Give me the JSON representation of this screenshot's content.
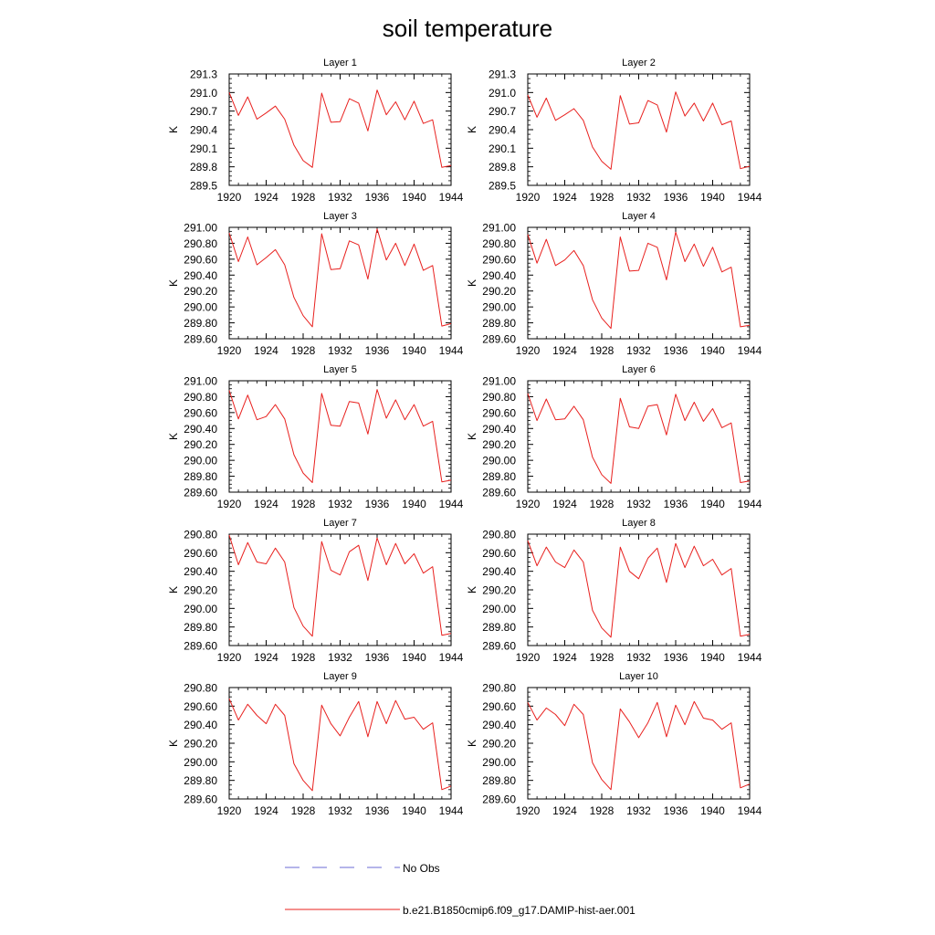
{
  "figure": {
    "title": "soil temperature",
    "legend": [
      {
        "label": "No Obs",
        "style": "dashed",
        "color": "#6b6bd6"
      },
      {
        "label": "b.e21.B1850cmip6.f09_g17.DAMIP-hist-aer.001",
        "style": "solid",
        "color": "#e8201e"
      }
    ]
  },
  "chart_data": [
    {
      "type": "line",
      "title": "Layer 1",
      "ylabel": "K",
      "xlim": [
        1920,
        1944
      ],
      "ylim": [
        289.5,
        291.3
      ],
      "xticks": [
        1920,
        1924,
        1928,
        1932,
        1936,
        1940,
        1944
      ],
      "yticks": [
        "289.5",
        "289.8",
        "290.1",
        "290.4",
        "290.7",
        "291.0",
        "291.3"
      ],
      "series": [
        {
          "color": "#e8201e",
          "x": [
            1920,
            1921,
            1922,
            1923,
            1924,
            1925,
            1926,
            1927,
            1928,
            1929,
            1930,
            1931,
            1932,
            1933,
            1934,
            1935,
            1936,
            1937,
            1938,
            1939,
            1940,
            1941,
            1942,
            1943,
            1944
          ],
          "values": [
            291.0,
            290.63,
            290.93,
            290.57,
            290.67,
            290.78,
            290.57,
            290.15,
            289.9,
            289.79,
            290.99,
            290.52,
            290.53,
            290.9,
            290.83,
            290.38,
            291.04,
            290.64,
            290.85,
            290.56,
            290.86,
            290.5,
            290.56,
            289.79,
            289.82
          ]
        }
      ]
    },
    {
      "type": "line",
      "title": "Layer 2",
      "ylabel": "K",
      "xlim": [
        1920,
        1944
      ],
      "ylim": [
        289.5,
        291.3
      ],
      "xticks": [
        1920,
        1924,
        1928,
        1932,
        1936,
        1940,
        1944
      ],
      "yticks": [
        "289.5",
        "289.8",
        "290.1",
        "290.4",
        "290.7",
        "291.0",
        "291.3"
      ],
      "series": [
        {
          "color": "#e8201e",
          "x": [
            1920,
            1921,
            1922,
            1923,
            1924,
            1925,
            1926,
            1927,
            1928,
            1929,
            1930,
            1931,
            1932,
            1933,
            1934,
            1935,
            1936,
            1937,
            1938,
            1939,
            1940,
            1941,
            1942,
            1943,
            1944
          ],
          "values": [
            290.96,
            290.6,
            290.91,
            290.55,
            290.64,
            290.74,
            290.55,
            290.12,
            289.89,
            289.76,
            290.95,
            290.49,
            290.51,
            290.87,
            290.8,
            290.36,
            291.01,
            290.62,
            290.83,
            290.54,
            290.83,
            290.48,
            290.54,
            289.77,
            289.81
          ]
        }
      ]
    },
    {
      "type": "line",
      "title": "Layer 3",
      "ylabel": "K",
      "xlim": [
        1920,
        1944
      ],
      "ylim": [
        289.6,
        291.0
      ],
      "xticks": [
        1920,
        1924,
        1928,
        1932,
        1936,
        1940,
        1944
      ],
      "yticks": [
        "289.60",
        "289.80",
        "290.00",
        "290.20",
        "290.40",
        "290.60",
        "290.80",
        "291.00"
      ],
      "series": [
        {
          "color": "#e8201e",
          "x": [
            1920,
            1921,
            1922,
            1923,
            1924,
            1925,
            1926,
            1927,
            1928,
            1929,
            1930,
            1931,
            1932,
            1933,
            1934,
            1935,
            1936,
            1937,
            1938,
            1939,
            1940,
            1941,
            1942,
            1943,
            1944
          ],
          "values": [
            290.93,
            290.57,
            290.88,
            290.53,
            290.62,
            290.72,
            290.53,
            290.12,
            289.89,
            289.75,
            290.92,
            290.47,
            290.48,
            290.83,
            290.78,
            290.35,
            290.98,
            290.59,
            290.8,
            290.52,
            290.79,
            290.46,
            290.52,
            289.76,
            289.79
          ]
        }
      ]
    },
    {
      "type": "line",
      "title": "Layer 4",
      "ylabel": "K",
      "xlim": [
        1920,
        1944
      ],
      "ylim": [
        289.6,
        291.0
      ],
      "xticks": [
        1920,
        1924,
        1928,
        1932,
        1936,
        1940,
        1944
      ],
      "yticks": [
        "289.60",
        "289.80",
        "290.00",
        "290.20",
        "290.40",
        "290.60",
        "290.80",
        "291.00"
      ],
      "series": [
        {
          "color": "#e8201e",
          "x": [
            1920,
            1921,
            1922,
            1923,
            1924,
            1925,
            1926,
            1927,
            1928,
            1929,
            1930,
            1931,
            1932,
            1933,
            1934,
            1935,
            1936,
            1937,
            1938,
            1939,
            1940,
            1941,
            1942,
            1943,
            1944
          ],
          "values": [
            290.91,
            290.55,
            290.85,
            290.52,
            290.59,
            290.71,
            290.52,
            290.09,
            289.86,
            289.73,
            290.88,
            290.45,
            290.46,
            290.8,
            290.75,
            290.34,
            290.94,
            290.57,
            290.79,
            290.51,
            290.75,
            290.44,
            290.5,
            289.75,
            289.77
          ]
        }
      ]
    },
    {
      "type": "line",
      "title": "Layer 5",
      "ylabel": "K",
      "xlim": [
        1920,
        1944
      ],
      "ylim": [
        289.6,
        291.0
      ],
      "xticks": [
        1920,
        1924,
        1928,
        1932,
        1936,
        1940,
        1944
      ],
      "yticks": [
        "289.60",
        "289.80",
        "290.00",
        "290.20",
        "290.40",
        "290.60",
        "290.80",
        "291.00"
      ],
      "series": [
        {
          "color": "#e8201e",
          "x": [
            1920,
            1921,
            1922,
            1923,
            1924,
            1925,
            1926,
            1927,
            1928,
            1929,
            1930,
            1931,
            1932,
            1933,
            1934,
            1935,
            1936,
            1937,
            1938,
            1939,
            1940,
            1941,
            1942,
            1943,
            1944
          ],
          "values": [
            290.88,
            290.52,
            290.82,
            290.51,
            290.55,
            290.7,
            290.52,
            290.07,
            289.84,
            289.72,
            290.84,
            290.44,
            290.43,
            290.74,
            290.72,
            290.33,
            290.89,
            290.53,
            290.76,
            290.51,
            290.7,
            290.43,
            290.49,
            289.73,
            289.75
          ]
        }
      ]
    },
    {
      "type": "line",
      "title": "Layer 6",
      "ylabel": "K",
      "xlim": [
        1920,
        1944
      ],
      "ylim": [
        289.6,
        291.0
      ],
      "xticks": [
        1920,
        1924,
        1928,
        1932,
        1936,
        1940,
        1944
      ],
      "yticks": [
        "289.60",
        "289.80",
        "290.00",
        "290.20",
        "290.40",
        "290.60",
        "290.80",
        "291.00"
      ],
      "series": [
        {
          "color": "#e8201e",
          "x": [
            1920,
            1921,
            1922,
            1923,
            1924,
            1925,
            1926,
            1927,
            1928,
            1929,
            1930,
            1931,
            1932,
            1933,
            1934,
            1935,
            1936,
            1937,
            1938,
            1939,
            1940,
            1941,
            1942,
            1943,
            1944
          ],
          "values": [
            290.84,
            290.5,
            290.77,
            290.51,
            290.52,
            290.68,
            290.51,
            290.04,
            289.82,
            289.71,
            290.78,
            290.42,
            290.4,
            290.68,
            290.7,
            290.32,
            290.83,
            290.5,
            290.73,
            290.49,
            290.65,
            290.41,
            290.47,
            289.72,
            289.74
          ]
        }
      ]
    },
    {
      "type": "line",
      "title": "Layer 7",
      "ylabel": "K",
      "xlim": [
        1920,
        1944
      ],
      "ylim": [
        289.6,
        290.8
      ],
      "xticks": [
        1920,
        1924,
        1928,
        1932,
        1936,
        1940,
        1944
      ],
      "yticks": [
        "289.60",
        "289.80",
        "290.00",
        "290.20",
        "290.40",
        "290.60",
        "290.80"
      ],
      "series": [
        {
          "color": "#e8201e",
          "x": [
            1920,
            1921,
            1922,
            1923,
            1924,
            1925,
            1926,
            1927,
            1928,
            1929,
            1930,
            1931,
            1932,
            1933,
            1934,
            1935,
            1936,
            1937,
            1938,
            1939,
            1940,
            1941,
            1942,
            1943,
            1944
          ],
          "values": [
            290.79,
            290.47,
            290.71,
            290.5,
            290.48,
            290.65,
            290.5,
            290.01,
            289.81,
            289.7,
            290.72,
            290.41,
            290.36,
            290.61,
            290.68,
            290.3,
            290.76,
            290.47,
            290.7,
            290.48,
            290.59,
            290.38,
            290.45,
            289.71,
            289.73
          ]
        }
      ]
    },
    {
      "type": "line",
      "title": "Layer 8",
      "ylabel": "K",
      "xlim": [
        1920,
        1944
      ],
      "ylim": [
        289.6,
        290.8
      ],
      "xticks": [
        1920,
        1924,
        1928,
        1932,
        1936,
        1940,
        1944
      ],
      "yticks": [
        "289.60",
        "289.80",
        "290.00",
        "290.20",
        "290.40",
        "290.60",
        "290.80"
      ],
      "series": [
        {
          "color": "#e8201e",
          "x": [
            1920,
            1921,
            1922,
            1923,
            1924,
            1925,
            1926,
            1927,
            1928,
            1929,
            1930,
            1931,
            1932,
            1933,
            1934,
            1935,
            1936,
            1937,
            1938,
            1939,
            1940,
            1941,
            1942,
            1943,
            1944
          ],
          "values": [
            290.73,
            290.46,
            290.66,
            290.5,
            290.44,
            290.63,
            290.5,
            289.98,
            289.79,
            289.69,
            290.66,
            290.4,
            290.32,
            290.54,
            290.65,
            290.28,
            290.7,
            290.44,
            290.67,
            290.46,
            290.53,
            290.36,
            290.43,
            289.7,
            289.72
          ]
        }
      ]
    },
    {
      "type": "line",
      "title": "Layer 9",
      "ylabel": "K",
      "xlim": [
        1920,
        1944
      ],
      "ylim": [
        289.6,
        290.8
      ],
      "xticks": [
        1920,
        1924,
        1928,
        1932,
        1936,
        1940,
        1944
      ],
      "yticks": [
        "289.60",
        "289.80",
        "290.00",
        "290.20",
        "290.40",
        "290.60",
        "290.80"
      ],
      "series": [
        {
          "color": "#e8201e",
          "x": [
            1920,
            1921,
            1922,
            1923,
            1924,
            1925,
            1926,
            1927,
            1928,
            1929,
            1930,
            1931,
            1932,
            1933,
            1934,
            1935,
            1936,
            1937,
            1938,
            1939,
            1940,
            1941,
            1942,
            1943,
            1944
          ],
          "values": [
            290.68,
            290.45,
            290.62,
            290.5,
            290.41,
            290.62,
            290.5,
            289.98,
            289.8,
            289.69,
            290.61,
            290.41,
            290.28,
            290.48,
            290.65,
            290.27,
            290.65,
            290.41,
            290.66,
            290.46,
            290.48,
            290.35,
            290.42,
            289.7,
            289.74
          ]
        }
      ]
    },
    {
      "type": "line",
      "title": "Layer 10",
      "ylabel": "K",
      "xlim": [
        1920,
        1944
      ],
      "ylim": [
        289.6,
        290.8
      ],
      "xticks": [
        1920,
        1924,
        1928,
        1932,
        1936,
        1940,
        1944
      ],
      "yticks": [
        "289.60",
        "289.80",
        "290.00",
        "290.20",
        "290.40",
        "290.60",
        "290.80"
      ],
      "series": [
        {
          "color": "#e8201e",
          "x": [
            1920,
            1921,
            1922,
            1923,
            1924,
            1925,
            1926,
            1927,
            1928,
            1929,
            1930,
            1931,
            1932,
            1933,
            1934,
            1935,
            1936,
            1937,
            1938,
            1939,
            1940,
            1941,
            1942,
            1943,
            1944
          ],
          "values": [
            290.64,
            290.45,
            290.58,
            290.51,
            290.39,
            290.62,
            290.51,
            289.99,
            289.81,
            289.7,
            290.57,
            290.43,
            290.26,
            290.42,
            290.64,
            290.27,
            290.61,
            290.4,
            290.65,
            290.47,
            290.45,
            290.35,
            290.42,
            289.72,
            289.76
          ]
        }
      ]
    }
  ]
}
